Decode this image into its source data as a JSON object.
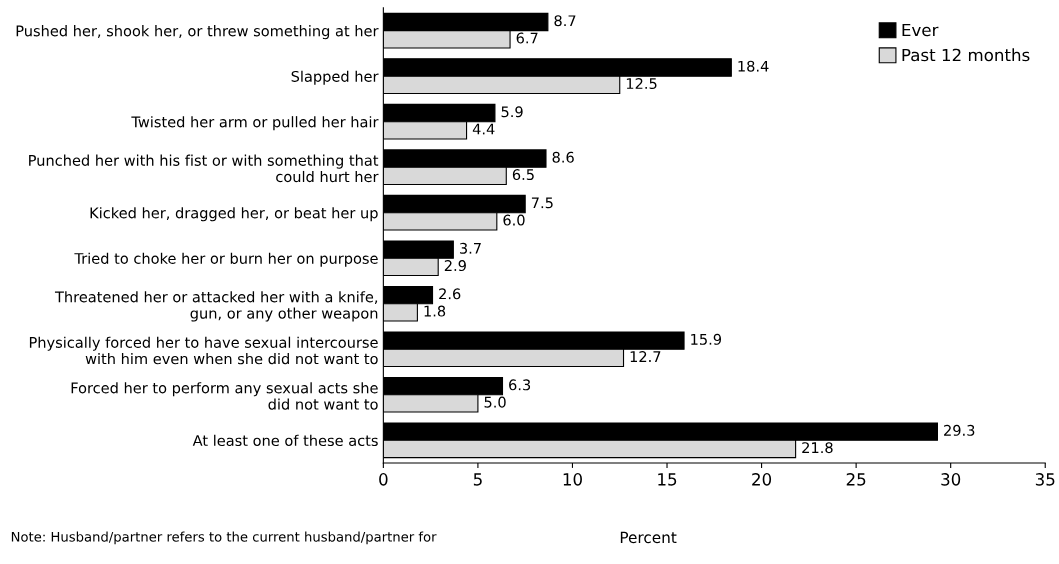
{
  "chart_data": {
    "type": "bar",
    "orientation": "horizontal",
    "categories": [
      "Pushed her, shook her, or threw something at her",
      "Slapped her",
      "Twisted her arm or pulled her hair",
      "Punched her with his fist or with something that\ncould hurt her",
      "Kicked her, dragged her, or beat her up",
      "Tried to choke her or burn her on purpose",
      "Threatened her or attacked her with a knife,\ngun, or any other weapon",
      "Physically forced her to have sexual intercourse\nwith him even when she did not want to",
      "Forced her to perform any sexual acts she\ndid not want to",
      "At least one of these acts"
    ],
    "series": [
      {
        "name": "Ever",
        "color": "#000000",
        "values": [
          8.7,
          18.4,
          5.9,
          8.6,
          7.5,
          3.7,
          2.6,
          15.9,
          6.3,
          29.3
        ],
        "value_labels": [
          "8.7",
          "18.4",
          "5.9",
          "8.6",
          "7.5",
          "3.7",
          "2.6",
          "15.9",
          "6.3",
          "29.3"
        ]
      },
      {
        "name": "Past 12 months",
        "color": "#d9d9d9",
        "values": [
          6.7,
          12.5,
          4.4,
          6.5,
          6.0,
          2.9,
          1.8,
          12.7,
          5.0,
          21.8
        ],
        "value_labels": [
          "6.7",
          "12.5",
          "4.4",
          "6.5",
          "6.0",
          "2.9",
          "1.8",
          "12.7",
          "5.0",
          "21.8"
        ]
      }
    ],
    "xlim": [
      0,
      35
    ],
    "xticks": [
      0,
      5,
      10,
      15,
      20,
      25,
      30,
      35
    ],
    "xlabel": "Percent",
    "legend": "top right",
    "grid": false,
    "annotations": [
      "Note: Husband/partner refers to the current husband/partner for"
    ]
  }
}
